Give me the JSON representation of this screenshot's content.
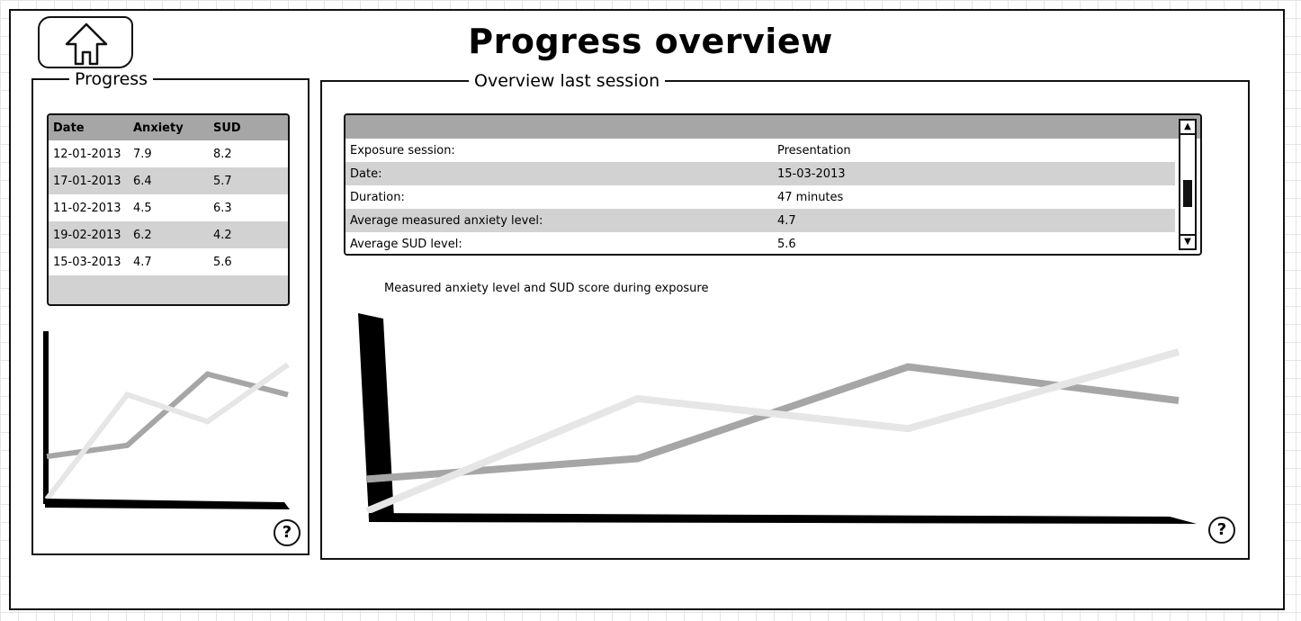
{
  "page": {
    "title": "Progress overview",
    "home_icon": "home-icon"
  },
  "progress_panel": {
    "legend": "Progress",
    "table": {
      "columns": [
        "Date",
        "Anxiety",
        "SUD"
      ],
      "rows": [
        [
          "12-01-2013",
          "7.9",
          "8.2"
        ],
        [
          "17-01-2013",
          "6.4",
          "5.7"
        ],
        [
          "11-02-2013",
          "4.5",
          "6.3"
        ],
        [
          "19-02-2013",
          "6.2",
          "4.2"
        ],
        [
          "15-03-2013",
          "4.7",
          "5.6"
        ]
      ]
    },
    "help_label": "?"
  },
  "session_panel": {
    "legend": "Overview last session",
    "table": {
      "rows": [
        [
          "Exposure session:",
          "Presentation"
        ],
        [
          "Date:",
          "15-03-2013"
        ],
        [
          "Duration:",
          "47 minutes"
        ],
        [
          "Average measured anxiety level:",
          "4.7"
        ],
        [
          "Average SUD level:",
          "5.6"
        ]
      ]
    },
    "chart_caption": "Measured anxiety level and SUD score during exposure",
    "help_label": "?",
    "scroll_up": "▲",
    "scroll_down": "▼"
  },
  "colors": {
    "series_dark": "#a6a6a6",
    "series_light": "#e6e6e6",
    "axis": "#000000"
  },
  "chart_data": [
    {
      "type": "line",
      "title": "",
      "x": [
        1,
        2,
        3,
        4
      ],
      "ylim": [
        0,
        10
      ],
      "series": [
        {
          "values": [
            3.0,
            3.7,
            8.2,
            6.9
          ],
          "color": "#a6a6a6"
        },
        {
          "values": [
            0.3,
            6.9,
            5.2,
            8.8
          ],
          "color": "#e6e6e6"
        }
      ]
    },
    {
      "type": "line",
      "title": "Measured anxiety level and SUD score during exposure",
      "x": [
        1,
        2,
        3,
        4
      ],
      "ylim": [
        0,
        10
      ],
      "series": [
        {
          "values": [
            2.0,
            3.1,
            8.0,
            6.2
          ],
          "color": "#a6a6a6"
        },
        {
          "values": [
            0.3,
            6.3,
            4.7,
            8.8
          ],
          "color": "#e6e6e6"
        }
      ]
    }
  ]
}
